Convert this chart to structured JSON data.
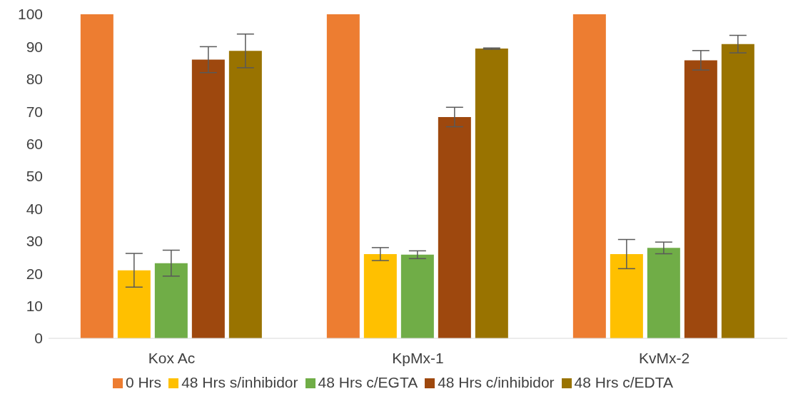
{
  "chart_data": {
    "type": "bar",
    "categories": [
      "Kox Ac",
      "KpMx-1",
      "KvMx-2"
    ],
    "series": [
      {
        "name": "0 Hrs",
        "color": "#ed7d31",
        "values": [
          100,
          100,
          100
        ],
        "errors": [
          0,
          0,
          0
        ]
      },
      {
        "name": "48 Hrs s/inhibidor",
        "color": "#ffc000",
        "values": [
          21,
          26,
          26
        ],
        "errors": [
          5.2,
          2,
          4.5
        ]
      },
      {
        "name": "48 Hrs c/EGTA",
        "color": "#70ad47",
        "values": [
          23.2,
          25.8,
          27.9
        ],
        "errors": [
          4,
          1.2,
          1.8
        ]
      },
      {
        "name": "48 Hrs c/inhibidor",
        "color": "#9e480e",
        "values": [
          86,
          68.3,
          85.8
        ],
        "errors": [
          4,
          3,
          3
        ]
      },
      {
        "name": "48 Hrs c/EDTA",
        "color": "#997300",
        "values": [
          88.7,
          89.4,
          90.8
        ],
        "errors": [
          5.2,
          0.2,
          2.7
        ]
      }
    ],
    "ylim": [
      0,
      100
    ],
    "yticks": [
      0,
      10,
      20,
      30,
      40,
      50,
      60,
      70,
      80,
      90,
      100
    ],
    "grid": false,
    "legend": "bottom"
  }
}
